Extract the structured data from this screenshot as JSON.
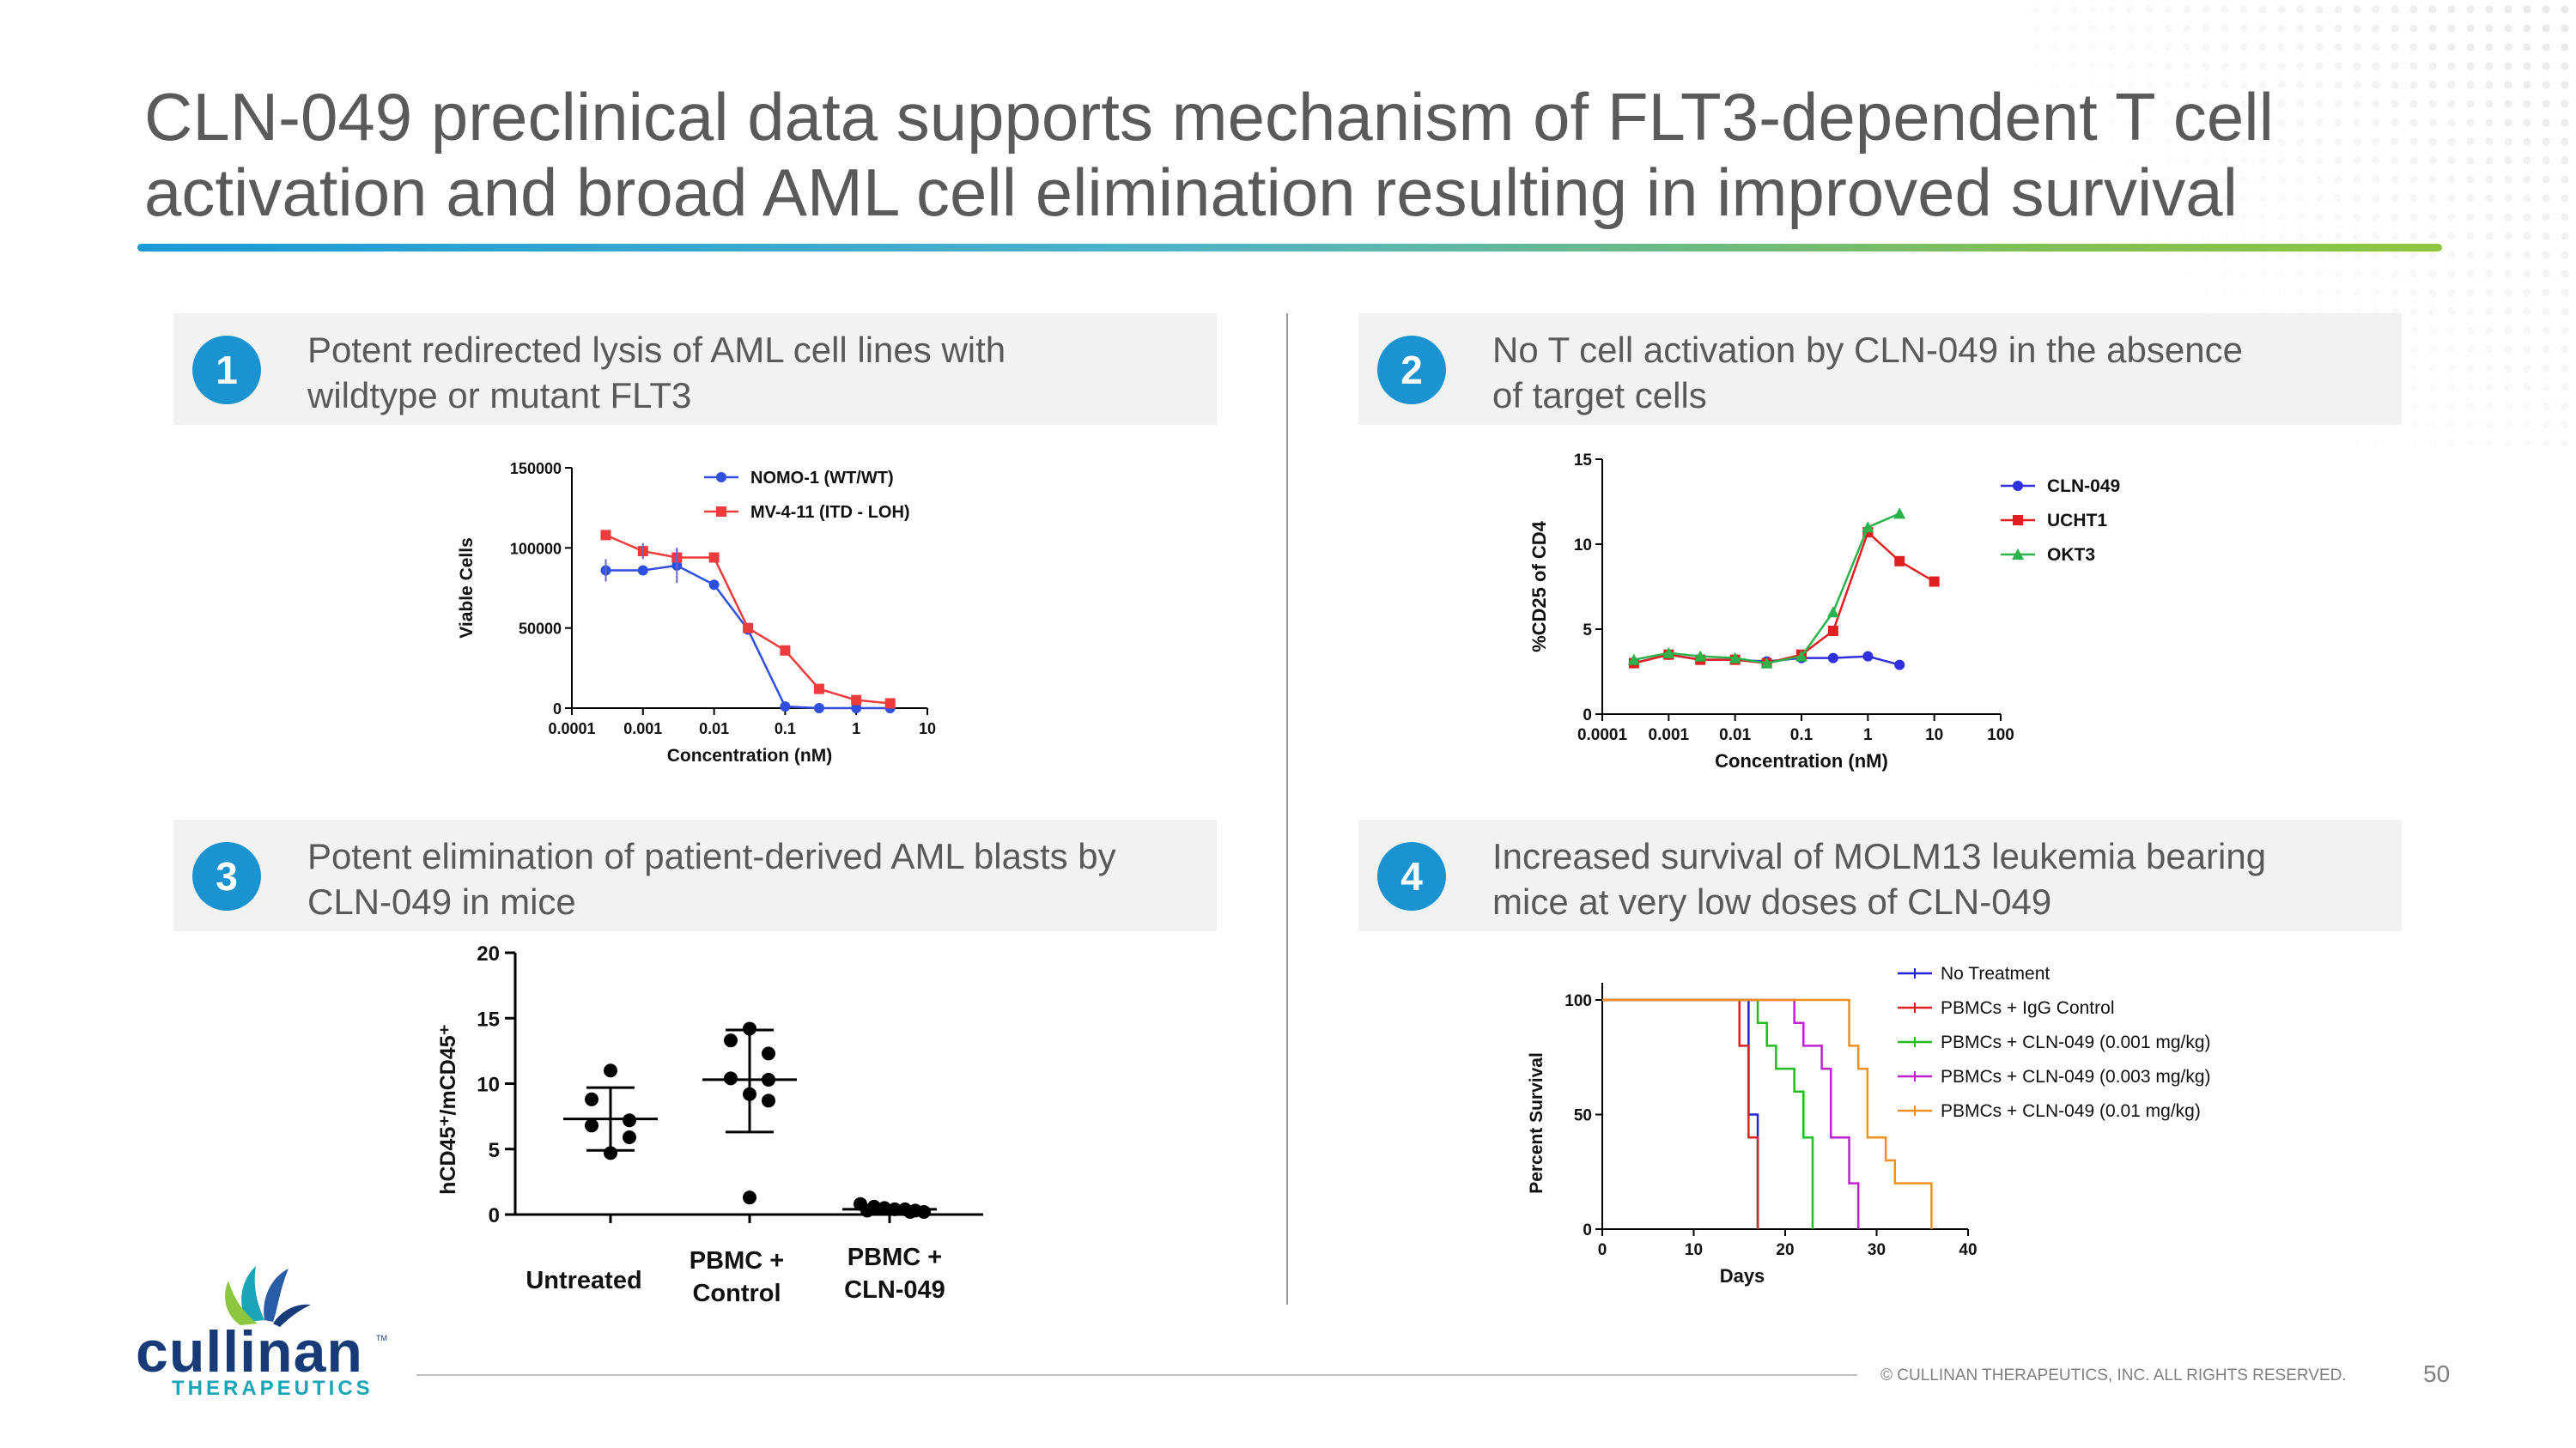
{
  "title_lines": [
    "CLN-049 preclinical data supports mechanism of FLT3-dependent T cell",
    "activation and broad AML cell elimination resulting in improved survival"
  ],
  "panels": [
    {
      "number": "1",
      "text_lines": [
        "Potent redirected lysis of AML cell lines with",
        "wildtype or mutant FLT3"
      ]
    },
    {
      "number": "2",
      "text_lines": [
        "No T cell activation by CLN-049 in the absence",
        "of target cells"
      ]
    },
    {
      "number": "3",
      "text_lines": [
        "Potent elimination of patient-derived AML blasts by",
        "CLN-049 in mice"
      ]
    },
    {
      "number": "4",
      "text_lines": [
        "Increased survival of MOLM13 leukemia bearing",
        "mice at very low doses of CLN-049"
      ]
    }
  ],
  "chart_data": [
    {
      "type": "line",
      "title": "",
      "xlabel": "Concentration (nM)",
      "ylabel": "Viable Cells",
      "x_scale": "log",
      "xlim": [
        0.0001,
        10
      ],
      "ylim": [
        0,
        150000
      ],
      "x_ticks": [
        "0.0001",
        "0.001",
        "0.01",
        "0.1",
        "1",
        "10"
      ],
      "y_ticks": [
        "0",
        "50000",
        "100000",
        "150000"
      ],
      "legend_position": "top-right",
      "series": [
        {
          "name": "NOMO-1 (WT/WT)",
          "color": "#2f4fe0",
          "marker": "circle",
          "x": [
            0.0003,
            0.001,
            0.003,
            0.01,
            0.03,
            0.1,
            0.3,
            1,
            3
          ],
          "y": [
            86000,
            86000,
            89000,
            77000,
            49000,
            1000,
            0,
            0,
            0
          ]
        },
        {
          "name": "MV-4-11 (ITD - LOH)",
          "color": "#ee3b3b",
          "marker": "square",
          "x": [
            0.0003,
            0.001,
            0.003,
            0.01,
            0.03,
            0.1,
            0.3,
            1,
            3
          ],
          "y": [
            108000,
            98000,
            94000,
            94000,
            50000,
            36000,
            12000,
            5000,
            3000
          ]
        }
      ]
    },
    {
      "type": "line",
      "title": "",
      "xlabel": "Concentration (nM)",
      "ylabel": "%CD25 of CD4",
      "x_scale": "log",
      "xlim": [
        0.0001,
        100
      ],
      "ylim": [
        0,
        15
      ],
      "x_ticks": [
        "0.0001",
        "0.001",
        "0.01",
        "0.1",
        "1",
        "10",
        "100"
      ],
      "y_ticks": [
        "0",
        "5",
        "10",
        "15"
      ],
      "legend_position": "top-right",
      "series": [
        {
          "name": "CLN-049",
          "color": "#2f2fe0",
          "marker": "circle",
          "x": [
            0.0003,
            0.001,
            0.003,
            0.01,
            0.03,
            0.1,
            0.3,
            1,
            3
          ],
          "y": [
            3.0,
            3.5,
            3.2,
            3.2,
            3.1,
            3.3,
            3.3,
            3.4,
            2.9
          ]
        },
        {
          "name": "UCHT1",
          "color": "#e02020",
          "marker": "square",
          "x": [
            0.0003,
            0.001,
            0.003,
            0.01,
            0.03,
            0.1,
            0.3,
            1,
            3,
            10
          ],
          "y": [
            3.0,
            3.5,
            3.2,
            3.2,
            3.0,
            3.5,
            4.9,
            10.7,
            9.0,
            7.8
          ]
        },
        {
          "name": "OKT3",
          "color": "#29b34a",
          "marker": "triangle",
          "x": [
            0.0003,
            0.001,
            0.003,
            0.01,
            0.03,
            0.1,
            0.3,
            1,
            3
          ],
          "y": [
            3.2,
            3.6,
            3.4,
            3.3,
            3.0,
            3.4,
            6.0,
            11.0,
            11.8
          ]
        }
      ]
    },
    {
      "type": "scatter",
      "title": "",
      "xlabel": "",
      "ylabel": "hCD45⁺/mCD45⁺",
      "ylim": [
        0,
        20
      ],
      "y_ticks": [
        "0",
        "5",
        "10",
        "15",
        "20"
      ],
      "categories": [
        "Untreated",
        "PBMC + Control",
        "PBMC + CLN-049"
      ],
      "category_label_lines": [
        [
          "Untreated"
        ],
        [
          "PBMC +",
          "Control"
        ],
        [
          "PBMC +",
          "CLN-049"
        ]
      ],
      "series": [
        {
          "category": "Untreated",
          "values": [
            11.0,
            8.8,
            7.2,
            6.8,
            5.9,
            4.7
          ],
          "mean": 7.3,
          "sd_low": 4.9,
          "sd_high": 9.7
        },
        {
          "category": "PBMC + Control",
          "values": [
            14.2,
            13.3,
            12.3,
            10.4,
            10.3,
            9.2,
            8.7,
            1.3
          ],
          "mean": 10.3,
          "sd_low": 6.3,
          "sd_high": 14.1
        },
        {
          "category": "PBMC + CLN-049",
          "values": [
            0.8,
            0.6,
            0.5,
            0.4,
            0.4,
            0.3,
            0.3,
            0.2,
            0.2
          ],
          "mean": 0.4,
          "sd_low": 0.2,
          "sd_high": 0.6
        }
      ]
    },
    {
      "type": "line",
      "title": "",
      "xlabel": "Days",
      "ylabel": "Percent Survival",
      "xlim": [
        0,
        40
      ],
      "ylim": [
        0,
        100
      ],
      "x_ticks": [
        "0",
        "10",
        "20",
        "30",
        "40"
      ],
      "y_ticks": [
        "0",
        "50",
        "100"
      ],
      "legend_position": "top-right",
      "step": true,
      "series": [
        {
          "name": "No Treatment",
          "color": "#2323d6",
          "x": [
            0,
            16,
            16,
            17,
            17
          ],
          "y": [
            100,
            100,
            50,
            50,
            0
          ]
        },
        {
          "name": "PBMCs + IgG Control",
          "color": "#e02020",
          "x": [
            0,
            15,
            15,
            16,
            16,
            17,
            17
          ],
          "y": [
            100,
            100,
            80,
            80,
            40,
            40,
            0
          ]
        },
        {
          "name": "PBMCs + CLN-049 (0.001 mg/kg)",
          "color": "#22bb22",
          "x": [
            0,
            17,
            17,
            18,
            18,
            19,
            19,
            21,
            21,
            22,
            22,
            23,
            23
          ],
          "y": [
            100,
            100,
            90,
            90,
            80,
            80,
            70,
            70,
            60,
            60,
            40,
            40,
            0
          ]
        },
        {
          "name": "PBMCs + CLN-049 (0.003 mg/kg)",
          "color": "#c020d0",
          "x": [
            0,
            21,
            21,
            22,
            22,
            24,
            24,
            25,
            25,
            27,
            27,
            28,
            28
          ],
          "y": [
            100,
            100,
            90,
            90,
            80,
            80,
            70,
            70,
            40,
            40,
            20,
            20,
            0
          ]
        },
        {
          "name": "PBMCs + CLN-049 (0.01 mg/kg)",
          "color": "#f09020",
          "x": [
            0,
            27,
            27,
            28,
            28,
            29,
            29,
            31,
            31,
            32,
            32,
            36,
            36
          ],
          "y": [
            100,
            100,
            80,
            80,
            70,
            70,
            40,
            40,
            30,
            30,
            20,
            20,
            0
          ]
        }
      ]
    }
  ],
  "footer": {
    "copyright": "© CULLINAN THERAPEUTICS, INC. ALL RIGHTS RESERVED.",
    "page_number": "50"
  },
  "logo": {
    "name": "cullinan",
    "tm": "TM",
    "sub": "THERAPEUTICS"
  },
  "colors": {
    "accent_blue": "#1b93d1",
    "logo_navy": "#173b78",
    "logo_teal": "#1aa6b8",
    "logo_green": "#8dc63f"
  }
}
